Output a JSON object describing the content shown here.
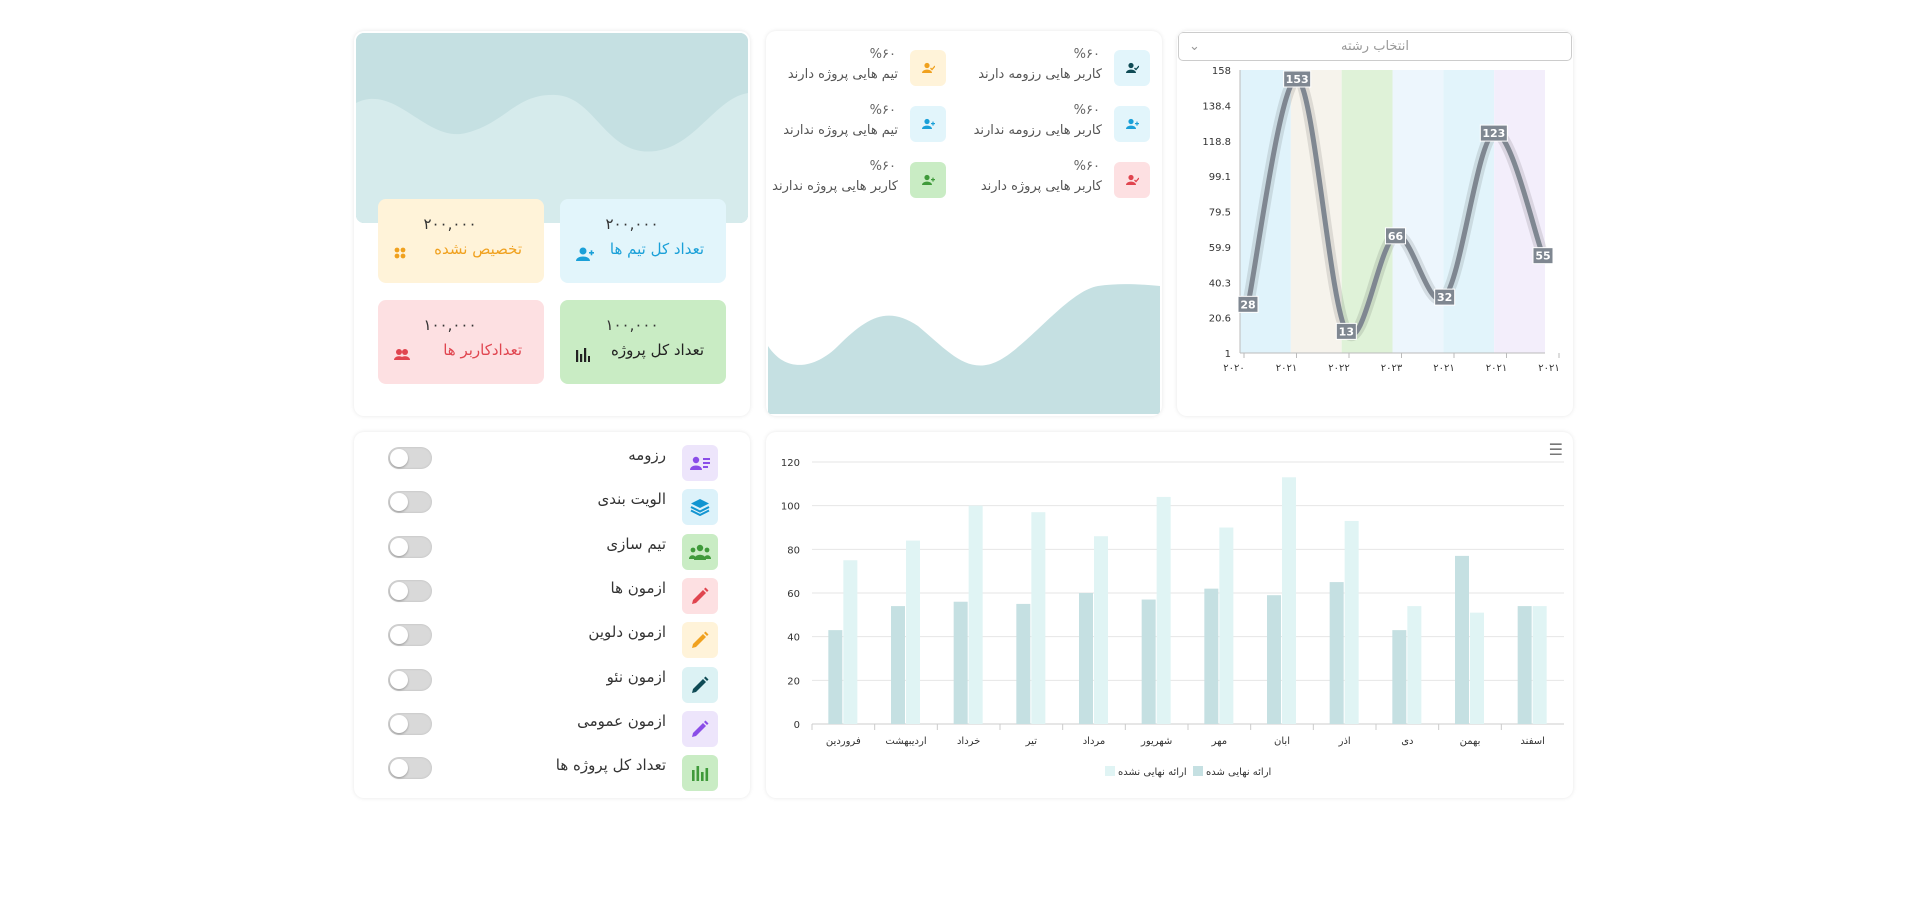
{
  "stats": {
    "unassigned": {
      "value": "۲۰۰,۰۰۰",
      "label": "تخصیص نشده",
      "bg": "#fff3d9",
      "color": "#f0a11f"
    },
    "total_teams": {
      "value": "۲۰۰,۰۰۰",
      "label": "تعداد کل تیم ها",
      "bg": "#e2f5fb",
      "color": "#1aa0d8"
    },
    "users_count": {
      "value": "۱۰۰,۰۰۰",
      "label": "تعدادکاربر ها",
      "bg": "#fde0e2",
      "color": "#e0454f"
    },
    "total_projects": {
      "value": "۱۰۰,۰۰۰",
      "label": "تعداد کل پروژه",
      "bg": "#c9ecc4",
      "color": "#222222"
    }
  },
  "percentages": [
    {
      "pct": "%۶۰",
      "text": "کاربر هایی رزومه دارند",
      "bg": "#e2f5fb",
      "color": "#0f4b55",
      "icon": "user-check-icon"
    },
    {
      "pct": "%۶۰",
      "text": "تیم هایی پروژه دارند",
      "bg": "#fff3d9",
      "color": "#f0a11f",
      "icon": "user-check-icon"
    },
    {
      "pct": "%۶۰",
      "text": "کاربر هایی رزومه ندارند",
      "bg": "#e2f5fb",
      "color": "#1aa0d8",
      "icon": "user-plus-icon"
    },
    {
      "pct": "%۶۰",
      "text": "تیم هایی پروژه ندارند",
      "bg": "#e2f5fb",
      "color": "#1aa0d8",
      "icon": "user-plus-icon"
    },
    {
      "pct": "%۶۰",
      "text": "کاربر هایی پروژه دارند",
      "bg": "#fde0e2",
      "color": "#e0454f",
      "icon": "user-check-icon"
    },
    {
      "pct": "%۶۰",
      "text": "کاربر هایی پروژه ندارند",
      "bg": "#c9ecc4",
      "color": "#3f9a3a",
      "icon": "user-plus-icon"
    }
  ],
  "field_select": {
    "placeholder": "انتخاب رشته"
  },
  "toggles": [
    {
      "label": "رزومه",
      "icon": "resume-icon",
      "bg": "#ede5fb",
      "color": "#8a4de8"
    },
    {
      "label": "الویت بندی",
      "icon": "layers-icon",
      "bg": "#dcf2fa",
      "color": "#1295d1"
    },
    {
      "label": "تیم سازی",
      "icon": "team-icon",
      "bg": "#c9ecc4",
      "color": "#3f9a3a"
    },
    {
      "label": "ازمون ها",
      "icon": "pencil-icon",
      "bg": "#fde0e2",
      "color": "#e0454f"
    },
    {
      "label": "ازمون دلوین",
      "icon": "pencil-icon",
      "bg": "#fff3d9",
      "color": "#f0a11f"
    },
    {
      "label": "ازمون نئو",
      "icon": "pencil-icon",
      "bg": "#dcf2f4",
      "color": "#0f4b55"
    },
    {
      "label": "ازمون عمومی",
      "icon": "pencil-icon",
      "bg": "#ede5fb",
      "color": "#8a4de8"
    },
    {
      "label": "تعداد کل پروژه ها",
      "icon": "bar-chart-icon",
      "bg": "#c9ecc4",
      "color": "#3f9a3a"
    }
  ],
  "chart_data": [
    {
      "type": "line",
      "x": [
        "۲۰۲۰",
        "۲۰۲۱",
        "۲۰۲۲",
        "۲۰۲۳",
        "۲۰۲۱",
        "۲۰۲۱",
        "۲۰۲۱"
      ],
      "series": [
        {
          "values": [
            28,
            153,
            13,
            66,
            32,
            123,
            55
          ]
        }
      ],
      "y_ticks": [
        "1",
        "20.6",
        "40.3",
        "59.9",
        "79.5",
        "99.1",
        "118.8",
        "138.4",
        "158"
      ],
      "ylim": [
        1,
        158
      ],
      "band_colors": [
        "#e0f3fb",
        "#f6f3ec",
        "#dff2d8",
        "#edf6fd",
        "#e2f4fb",
        "#f3eefb"
      ],
      "line_color": "#7f8791",
      "grid": false
    },
    {
      "type": "bar",
      "categories": [
        "فروردین",
        "اردیبهشت",
        "خرداد",
        "تیر",
        "مرداد",
        "شهریور",
        "مهر",
        "ابان",
        "اذر",
        "دی",
        "بهمن",
        "اسفند"
      ],
      "series": [
        {
          "name": "ارائه نهایی شده",
          "color": "#c5e0e2",
          "values": [
            43,
            54,
            56,
            55,
            60,
            57,
            62,
            59,
            65,
            43,
            77,
            54
          ]
        },
        {
          "name": "ارائه نهایی نشده",
          "color": "#e0f4f4",
          "values": [
            75,
            84,
            100,
            97,
            86,
            104,
            90,
            113,
            93,
            54,
            51,
            54
          ]
        }
      ],
      "y_ticks": [
        "0",
        "20",
        "40",
        "60",
        "80",
        "100",
        "120"
      ],
      "ylim": [
        0,
        120
      ],
      "grid": true,
      "legend_position": "bottom"
    }
  ]
}
